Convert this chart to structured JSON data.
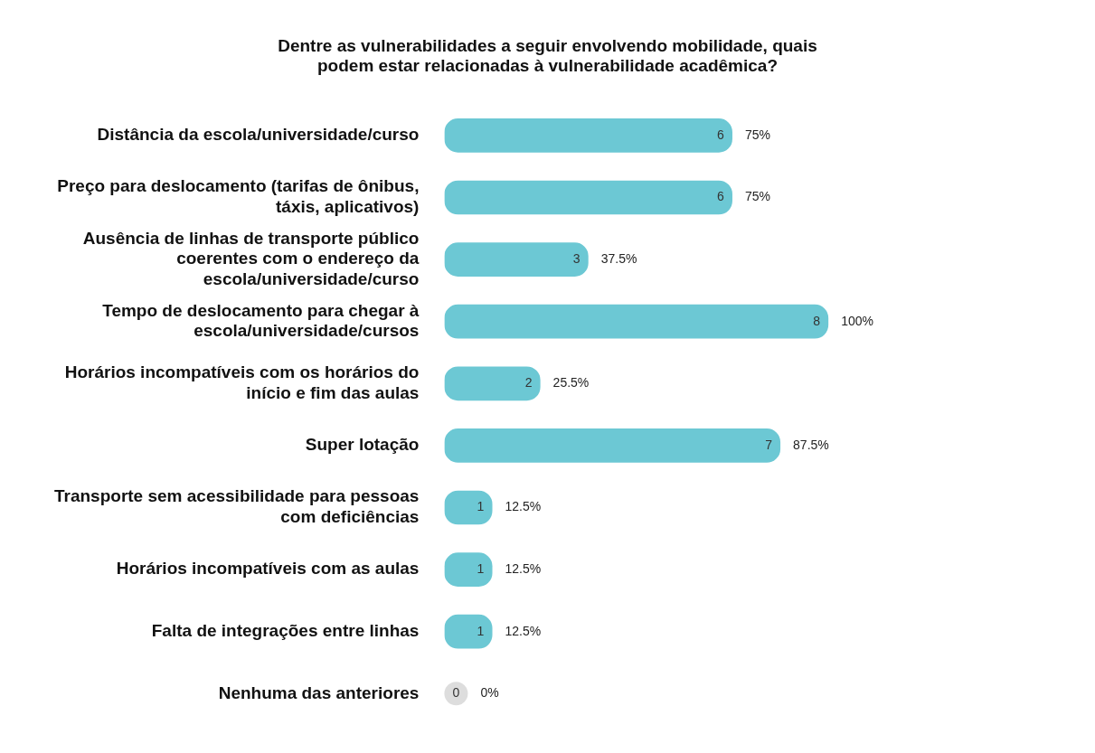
{
  "chart_data": {
    "type": "bar",
    "orientation": "horizontal",
    "title": "Dentre as vulnerabilidades a seguir envolvendo mobilidade, quais podem estar relacionadas à vulnerabilidade acadêmica?",
    "categories": [
      "Distância da escola/universidade/curso",
      "Preço para deslocamento (tarifas de ônibus, táxis, aplicativos)",
      "Ausência de linhas de transporte público coerentes com o endereço da escola/universidade/curso",
      "Tempo de deslocamento para chegar à escola/universidade/cursos",
      "Horários incompatíveis com os horários do início e fim das aulas",
      "Super lotação",
      "Transporte sem acessibilidade para pessoas com deficiências",
      "Horários incompatíveis com as aulas",
      "Falta de integrações entre linhas",
      "Nenhuma das anteriores"
    ],
    "values": [
      6,
      6,
      3,
      8,
      2,
      7,
      1,
      1,
      1,
      0
    ],
    "color": "#6cc8d4",
    "data_labels": true,
    "grid": false,
    "legend": false,
    "annotations": [
      {
        "text": "75%",
        "x": 6,
        "y": "Distância da escola/universidade/curso"
      },
      {
        "text": "75%",
        "x": 6,
        "y": "Preço para deslocamento (tarifas de ônibus, táxis, aplicativos)"
      },
      {
        "text": "37.5%",
        "x": 3,
        "y": "Ausência de linhas de transporte público coerentes com o endereço da escola/universidade/curso"
      },
      {
        "text": "100%",
        "x": 8,
        "y": "Tempo de deslocamento para chegar à escola/universidade/cursos"
      },
      {
        "text": "25.5%",
        "x": 2,
        "y": "Horários incompatíveis com os horários do início e fim das aulas"
      },
      {
        "text": "87.5%",
        "x": 7,
        "y": "Super lotação"
      },
      {
        "text": "12.5%",
        "x": 1,
        "y": "Transporte sem acessibilidade para pessoas com deficiências"
      },
      {
        "text": "12.5%",
        "x": 1,
        "y": "Horários incompatíveis com as aulas"
      },
      {
        "text": "12.5%",
        "x": 1,
        "y": "Falta de integrações entre linhas"
      },
      {
        "text": "0%",
        "x": 0,
        "y": "Nenhuma das anteriores"
      }
    ]
  }
}
